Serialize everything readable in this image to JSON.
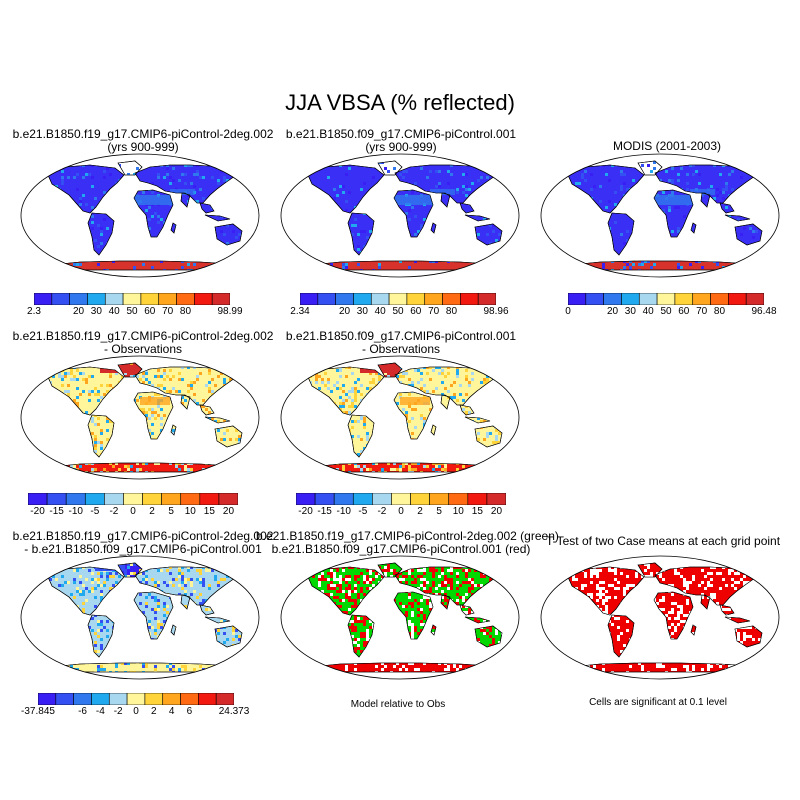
{
  "title": "JJA VBSA (% reflected)",
  "colors": {
    "ocean_land_bg": "#ffffff",
    "blue_land": "#3a2ff5",
    "antarctic_red": "#d8322d",
    "sig_red": "#ee0000",
    "diff_green": "#00d800"
  },
  "panels": [
    {
      "id": "p1",
      "title_line1": "b.e21.B1850.f19_g17.CMIP6-piControl-2deg.002",
      "title_line2": "(yrs 900-999)",
      "kind": "abs",
      "colorbar": {
        "colors": [
          "#3a1ff5",
          "#3550f2",
          "#2f78ee",
          "#21a9f0",
          "#a8d8f0",
          "#fff59a",
          "#ffd43a",
          "#ffa51e",
          "#ff6a12",
          "#f21a10",
          "#d42a2a"
        ],
        "labels": [
          "2.3",
          "20",
          "30",
          "40",
          "50",
          "60",
          "70",
          "80",
          "98.99"
        ]
      }
    },
    {
      "id": "p2",
      "title_line1": "b.e21.B1850.f09_g17.CMIP6-piControl.001",
      "title_line2": "(yrs 900-999)",
      "kind": "abs",
      "colorbar": {
        "colors": [
          "#3a1ff5",
          "#3550f2",
          "#2f78ee",
          "#21a9f0",
          "#a8d8f0",
          "#fff59a",
          "#ffd43a",
          "#ffa51e",
          "#ff6a12",
          "#f21a10",
          "#d42a2a"
        ],
        "labels": [
          "2.34",
          "20",
          "30",
          "40",
          "50",
          "60",
          "70",
          "80",
          "98.96"
        ]
      }
    },
    {
      "id": "p3",
      "title_line1": "MODIS (2001-2003)",
      "title_line2": "",
      "kind": "abs",
      "colorbar": {
        "colors": [
          "#3a1ff5",
          "#3550f2",
          "#2f78ee",
          "#21a9f0",
          "#a8d8f0",
          "#fff59a",
          "#ffd43a",
          "#ffa51e",
          "#ff6a12",
          "#f21a10",
          "#d42a2a"
        ],
        "labels": [
          "0",
          "20",
          "30",
          "40",
          "50",
          "60",
          "70",
          "80",
          "96.48"
        ]
      }
    },
    {
      "id": "p4",
      "title_line1": "b.e21.B1850.f19_g17.CMIP6-piControl-2deg.002",
      "title_line2": "- Observations",
      "kind": "diff",
      "colorbar": {
        "colors": [
          "#3a1ff5",
          "#3550f2",
          "#2f78ee",
          "#21a9f0",
          "#a8d8f0",
          "#fff59a",
          "#ffd43a",
          "#ffa51e",
          "#ff6a12",
          "#f21a10",
          "#d42a2a"
        ],
        "labels": [
          "-20",
          "-15",
          "-10",
          "-5",
          "-2",
          "0",
          "2",
          "5",
          "10",
          "15",
          "20"
        ]
      }
    },
    {
      "id": "p5",
      "title_line1": "b.e21.B1850.f09_g17.CMIP6-piControl.001",
      "title_line2": "- Observations",
      "kind": "diff",
      "colorbar": {
        "colors": [
          "#3a1ff5",
          "#3550f2",
          "#2f78ee",
          "#21a9f0",
          "#a8d8f0",
          "#fff59a",
          "#ffd43a",
          "#ffa51e",
          "#ff6a12",
          "#f21a10",
          "#d42a2a"
        ],
        "labels": [
          "-20",
          "-15",
          "-10",
          "-5",
          "-2",
          "0",
          "2",
          "5",
          "10",
          "15",
          "20"
        ]
      }
    },
    {
      "id": "p6",
      "title_line1": "b.e21.B1850.f19_g17.CMIP6-piControl-2deg.002",
      "title_line2": "- b.e21.B1850.f09_g17.CMIP6-piControl.001",
      "kind": "casediff",
      "colorbar": {
        "colors": [
          "#3a1ff5",
          "#3550f2",
          "#2f78ee",
          "#21a9f0",
          "#a8d8f0",
          "#fff59a",
          "#ffd43a",
          "#ffa51e",
          "#ff6a12",
          "#f21a10",
          "#d42a2a"
        ],
        "labels": [
          "-37.845",
          "-6",
          "-4",
          "-2",
          "0",
          "2",
          "4",
          "6",
          "24.373"
        ]
      }
    },
    {
      "id": "p7",
      "title_line1": "b.e21.B1850.f19_g17.CMIP6-piControl-2deg.002 (green)",
      "title_line2": "b.e21.B1850.f09_g17.CMIP6-piControl.001 (red)",
      "kind": "greenred",
      "note": "Model relative to Obs"
    },
    {
      "id": "p8",
      "title_line1": "T-Test of two Case means at each grid point",
      "title_line2": "",
      "kind": "ttest",
      "note": "Cells are significant at 0.1 level"
    }
  ],
  "chart_data": [
    {
      "type": "heatmap",
      "panel": "p1",
      "colorbar_min": 2.3,
      "colorbar_max": 98.99,
      "colorbar_levels": [
        20,
        30,
        40,
        50,
        60,
        70,
        80
      ]
    },
    {
      "type": "heatmap",
      "panel": "p2",
      "colorbar_min": 2.34,
      "colorbar_max": 98.96,
      "colorbar_levels": [
        20,
        30,
        40,
        50,
        60,
        70,
        80
      ]
    },
    {
      "type": "heatmap",
      "panel": "p3",
      "colorbar_min": 0,
      "colorbar_max": 96.48,
      "colorbar_levels": [
        20,
        30,
        40,
        50,
        60,
        70,
        80
      ]
    },
    {
      "type": "heatmap",
      "panel": "p4",
      "colorbar_levels": [
        -20,
        -15,
        -10,
        -5,
        -2,
        0,
        2,
        5,
        10,
        15,
        20
      ]
    },
    {
      "type": "heatmap",
      "panel": "p5",
      "colorbar_levels": [
        -20,
        -15,
        -10,
        -5,
        -2,
        0,
        2,
        5,
        10,
        15,
        20
      ]
    },
    {
      "type": "heatmap",
      "panel": "p6",
      "colorbar_min": -37.845,
      "colorbar_max": 24.373,
      "colorbar_levels": [
        -6,
        -4,
        -2,
        0,
        2,
        4,
        6
      ]
    },
    {
      "type": "heatmap",
      "panel": "p7"
    },
    {
      "type": "heatmap",
      "panel": "p8"
    }
  ]
}
